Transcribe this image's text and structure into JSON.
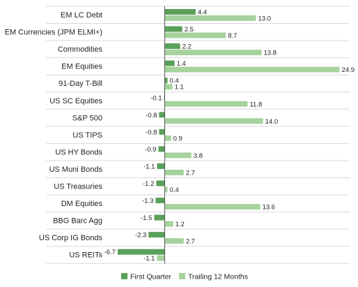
{
  "chart_data": {
    "type": "bar",
    "orientation": "horizontal",
    "categories": [
      "EM LC Debt",
      "EM Currencies (JPM ELMI+)",
      "Commodities",
      "EM Equities",
      "91-Day T-Bill",
      "US SC Equities",
      "S&P 500",
      "US TIPS",
      "US HY Bonds",
      "US Muni Bonds",
      "US Treasuries",
      "DM Equities",
      "BBG Barc Agg",
      "US Corp IG Bonds",
      "US REITs"
    ],
    "series": [
      {
        "name": "First Quarter",
        "color": "#5aa05a",
        "values": [
          4.4,
          2.5,
          2.2,
          1.4,
          0.4,
          -0.1,
          -0.8,
          -0.8,
          -0.9,
          -1.1,
          -1.2,
          -1.3,
          -1.5,
          -2.3,
          -6.7
        ]
      },
      {
        "name": "Trailing 12 Months",
        "color": "#a6d29e",
        "values": [
          13.0,
          8.7,
          13.8,
          24.9,
          1.1,
          11.8,
          14.0,
          0.9,
          3.8,
          2.7,
          0.4,
          13.6,
          1.2,
          2.7,
          -1.1
        ]
      }
    ],
    "value_labels": {
      "First Quarter": [
        "4.4",
        "2.5",
        "2.2",
        "1.4",
        "0.4",
        "-0.1",
        "-0.8",
        "-0.8",
        "-0.9",
        "-1.1",
        "-1.2",
        "-1.3",
        "-1.5",
        "-2.3",
        "-6.7"
      ],
      "Trailing 12 Months": [
        "13.0",
        "8.7",
        "13.8",
        "24.9",
        "1.1",
        "11.8",
        "14.0",
        "0.9",
        "3.8",
        "2.7",
        "0.4",
        "13.6",
        "1.2",
        "2.7",
        "-1.1"
      ]
    },
    "xlim": [
      -7,
      25
    ],
    "grid": "horizontal separators",
    "legend": "bottom"
  }
}
